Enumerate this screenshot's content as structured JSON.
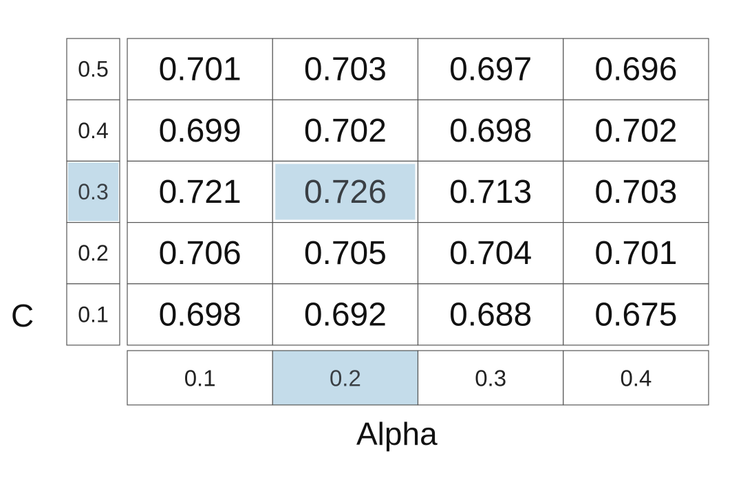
{
  "chart_data": {
    "type": "heatmap",
    "xlabel": "Alpha",
    "ylabel": "C",
    "x": [
      "0.1",
      "0.2",
      "0.3",
      "0.4"
    ],
    "y": [
      "0.5",
      "0.4",
      "0.3",
      "0.2",
      "0.1"
    ],
    "values": [
      [
        0.701,
        0.703,
        0.697,
        0.696
      ],
      [
        0.699,
        0.702,
        0.698,
        0.702
      ],
      [
        0.721,
        0.726,
        0.713,
        0.703
      ],
      [
        0.706,
        0.705,
        0.704,
        0.701
      ],
      [
        0.698,
        0.692,
        0.688,
        0.675
      ]
    ],
    "highlight": {
      "x": "0.2",
      "y": "0.3",
      "value": 0.726
    },
    "highlight_color": "#c4dcea",
    "grid": true
  }
}
